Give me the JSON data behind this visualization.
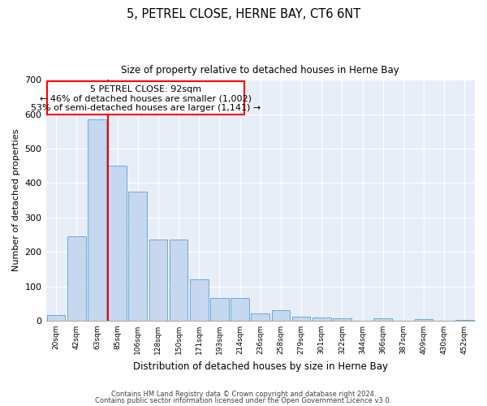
{
  "title": "5, PETREL CLOSE, HERNE BAY, CT6 6NT",
  "subtitle": "Size of property relative to detached houses in Herne Bay",
  "xlabel": "Distribution of detached houses by size in Herne Bay",
  "ylabel": "Number of detached properties",
  "bins": [
    "20sqm",
    "42sqm",
    "63sqm",
    "85sqm",
    "106sqm",
    "128sqm",
    "150sqm",
    "171sqm",
    "193sqm",
    "214sqm",
    "236sqm",
    "258sqm",
    "279sqm",
    "301sqm",
    "322sqm",
    "344sqm",
    "366sqm",
    "387sqm",
    "409sqm",
    "430sqm",
    "452sqm"
  ],
  "values": [
    17,
    245,
    585,
    450,
    375,
    235,
    235,
    120,
    65,
    65,
    22,
    30,
    12,
    10,
    7,
    0,
    8,
    0,
    5,
    0,
    3
  ],
  "bar_color": "#c5d8f0",
  "bar_edge_color": "#5a9fd4",
  "red_line_bar_index": 3,
  "annotation_text_line1": "5 PETREL CLOSE: 92sqm",
  "annotation_text_line2": "← 46% of detached houses are smaller (1,002)",
  "annotation_text_line3": "53% of semi-detached houses are larger (1,141) →",
  "ylim": [
    0,
    700
  ],
  "yticks": [
    0,
    100,
    200,
    300,
    400,
    500,
    600,
    700
  ],
  "bg_color": "#e8eef8",
  "footer_line1": "Contains HM Land Registry data © Crown copyright and database right 2024.",
  "footer_line2": "Contains public sector information licensed under the Open Government Licence v3.0."
}
